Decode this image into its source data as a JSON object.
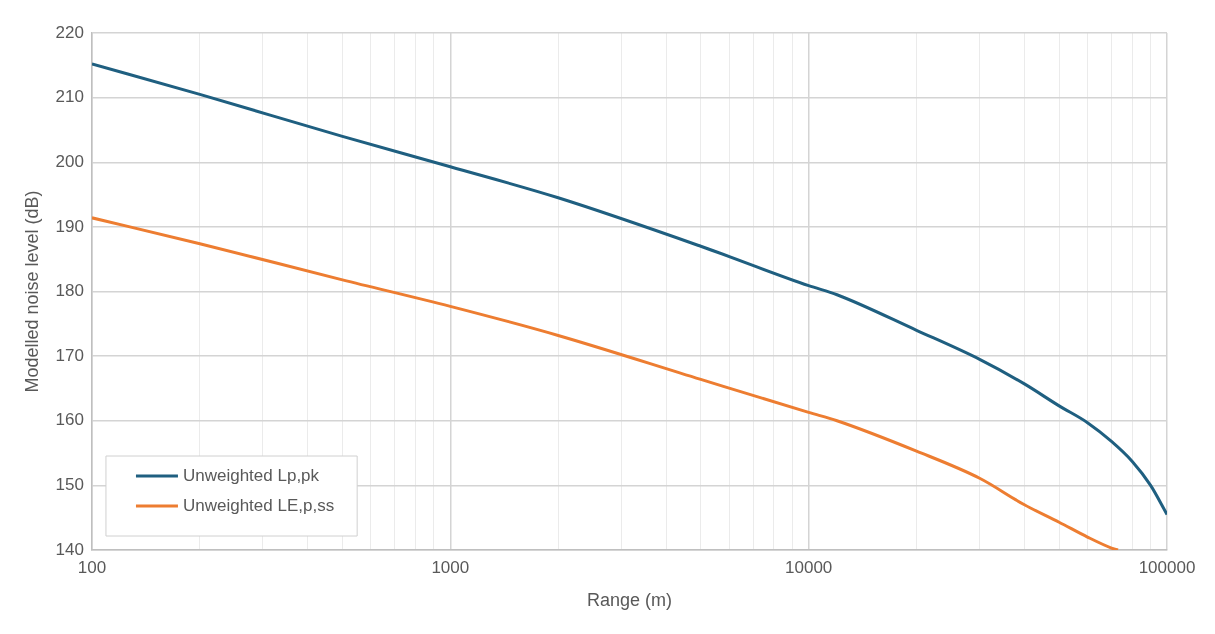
{
  "chart_data": {
    "type": "line",
    "xlabel": "Range (m)",
    "ylabel": "Modelled noise level (dB)",
    "log": "x",
    "grid": true,
    "legend": "bottom left",
    "marker": "none",
    "line_style": "solid",
    "xlim": [
      100,
      100000
    ],
    "ylim": [
      140,
      220
    ],
    "xticks": [
      100,
      {
        "value": 200,
        "label": null
      },
      {
        "value": 300,
        "label": null
      },
      {
        "value": 400,
        "label": null
      },
      {
        "value": 500,
        "label": null
      },
      {
        "value": 600,
        "label": null
      },
      {
        "value": 700,
        "label": null
      },
      {
        "value": 800,
        "label": null
      },
      {
        "value": 900,
        "label": null
      },
      1000,
      {
        "value": 2000,
        "label": null
      },
      {
        "value": 3000,
        "label": null
      },
      {
        "value": 4000,
        "label": null
      },
      {
        "value": 5000,
        "label": null
      },
      {
        "value": 6000,
        "label": null
      },
      {
        "value": 7000,
        "label": null
      },
      {
        "value": 8000,
        "label": null
      },
      {
        "value": 9000,
        "label": null
      },
      10000,
      {
        "value": 20000,
        "label": null
      },
      {
        "value": 30000,
        "label": null
      },
      {
        "value": 40000,
        "label": null
      },
      {
        "value": 50000,
        "label": null
      },
      {
        "value": 60000,
        "label": null
      },
      {
        "value": 70000,
        "label": null
      },
      {
        "value": 80000,
        "label": null
      },
      {
        "value": 90000,
        "label": null
      },
      100000
    ],
    "yticks": [
      140,
      150,
      160,
      170,
      180,
      190,
      200,
      210,
      220
    ],
    "series": [
      {
        "name": "Unweighted Lp,pk",
        "color": "#1f5f80",
        "x": [
          100,
          200,
          500,
          1000,
          2000,
          5000,
          10000,
          12000,
          20000,
          30000,
          40000,
          50000,
          60000,
          70000,
          80000,
          90000,
          100000
        ],
        "values": [
          215.2,
          210.5,
          204,
          199.3,
          194.5,
          187,
          180.9,
          179.5,
          174,
          169.5,
          165.7,
          162.3,
          159.7,
          156.8,
          153.7,
          150,
          145.5
        ]
      },
      {
        "name": "Unweighted LE,p,ss",
        "color": "#ed7d31",
        "x": [
          100,
          200,
          500,
          1000,
          2000,
          5000,
          10000,
          12000,
          20000,
          30000,
          40000,
          50000,
          60000,
          70000,
          73000
        ],
        "values": [
          191.4,
          187.4,
          181.8,
          177.7,
          173.2,
          166.4,
          161.3,
          160,
          155.3,
          151.1,
          147,
          144.3,
          142,
          140.3,
          140
        ]
      }
    ]
  }
}
